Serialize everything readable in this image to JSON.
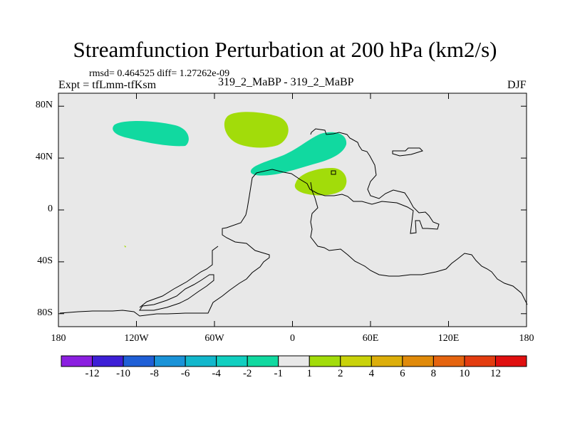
{
  "title": "Streamfunction Perturbation at 200 hPa (km2/s)",
  "stats_line": "rmsd= 0.464525 diff= 1.27262e-09",
  "left_label": "Expt = tfLmm-tfKsm",
  "center_label": "319_2_MaBP - 319_2_MaBP",
  "right_label": "DJF",
  "lat_ticks": [
    "80N",
    "40N",
    "0",
    "40S",
    "80S"
  ],
  "lat_values": [
    80,
    40,
    0,
    -40,
    -80
  ],
  "lon_ticks": [
    "180",
    "120W",
    "60W",
    "0",
    "60E",
    "120E",
    "180"
  ],
  "lon_values": [
    -180,
    -120,
    -60,
    0,
    60,
    120,
    180
  ],
  "colorbar": {
    "labels": [
      "-12",
      "-10",
      "-8",
      "-6",
      "-4",
      "-2",
      "-1",
      "1",
      "2",
      "4",
      "6",
      "8",
      "10",
      "12"
    ],
    "colors": [
      "#8b1fe0",
      "#3d1fd6",
      "#1f5fd6",
      "#1a93d8",
      "#12b7cc",
      "#11cfc0",
      "#11d9a0",
      "#e8e8e8",
      "#a2dc0a",
      "#c9d20a",
      "#dcae0a",
      "#e08a0a",
      "#e5640f",
      "#e33c10",
      "#e01010"
    ]
  },
  "map": {
    "background_color": "#e8e8e8",
    "features": [
      {
        "label": "negative anomaly",
        "value_range": "-2 to -1",
        "color": "#11d9a0",
        "center_lon": -110,
        "center_lat": 61
      },
      {
        "label": "positive anomaly",
        "value_range": "1 to 2",
        "color": "#a2dc0a",
        "center_lon": -35,
        "center_lat": 63
      },
      {
        "label": "negative anomaly",
        "value_range": "-2 to -1",
        "color": "#11d9a0",
        "center_lon": 10,
        "center_lat": 39
      },
      {
        "label": "positive anomaly",
        "value_range": "1 to 2",
        "color": "#a2dc0a",
        "center_lon": 22,
        "center_lat": 20
      }
    ]
  }
}
